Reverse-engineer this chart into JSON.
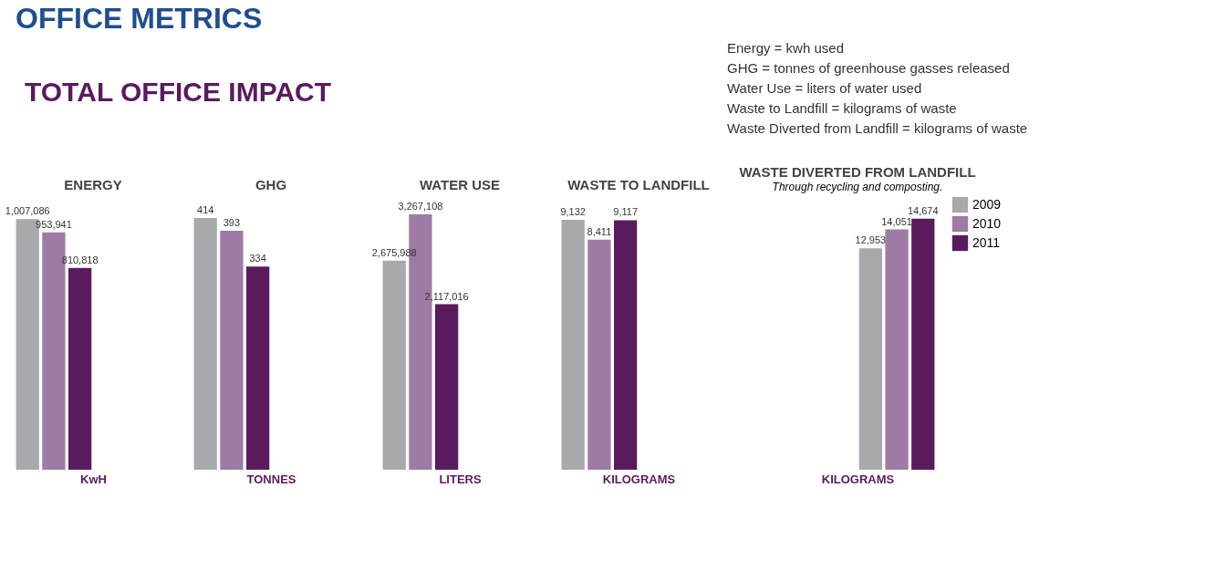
{
  "chart_data": [
    {
      "type": "other",
      "title": "OFFICE METRICS",
      "annotations": [
        "TOTAL OFFICE IMPACT",
        "Energy = kwh used",
        "GHG = tonnes of greenhouse gasses released",
        "Water Use = liters of water used",
        "Waste to Landfill = kilograms of waste",
        "Waste Diverted from Landfill = kilograms of waste"
      ]
    },
    {
      "type": "bar",
      "title": "ENERGY",
      "xlabel": "KwH",
      "categories": [
        null
      ],
      "tick_labels": false,
      "legend": false,
      "series": [
        {
          "color": "#a7a9ac",
          "values": [
            1007086
          ],
          "value_labels": [
            "1,007,086"
          ]
        },
        {
          "color": "#9e7ba5",
          "values": [
            953941
          ],
          "value_labels": [
            "953,941"
          ]
        },
        {
          "color": "#5a1a5e",
          "values": [
            810818
          ],
          "value_labels": [
            "810,818"
          ]
        }
      ]
    },
    {
      "type": "bar",
      "title": "GHG",
      "xlabel": "TONNES",
      "categories": [
        null
      ],
      "tick_labels": false,
      "legend": false,
      "series": [
        {
          "color": "#a7a9ac",
          "values": [
            414
          ],
          "value_labels": [
            "414"
          ]
        },
        {
          "color": "#9e7ba5",
          "values": [
            393
          ],
          "value_labels": [
            "393"
          ]
        },
        {
          "color": "#5a1a5e",
          "values": [
            334
          ],
          "value_labels": [
            "334"
          ]
        }
      ]
    },
    {
      "type": "bar",
      "title": "WATER USE",
      "xlabel": "LITERS",
      "categories": [
        null
      ],
      "tick_labels": false,
      "legend": false,
      "series": [
        {
          "color": "#a7a9ac",
          "values": [
            2675988
          ],
          "value_labels": [
            "2,675,988"
          ]
        },
        {
          "color": "#9e7ba5",
          "values": [
            3267108
          ],
          "value_labels": [
            "3,267,108"
          ]
        },
        {
          "color": "#5a1a5e",
          "values": [
            2117016
          ],
          "value_labels": [
            "2,117,016"
          ]
        }
      ]
    },
    {
      "type": "bar",
      "title": "WASTE TO LANDFILL",
      "xlabel": "KILOGRAMS",
      "categories": [
        null
      ],
      "tick_labels": false,
      "legend": false,
      "series": [
        {
          "color": "#a7a9ac",
          "values": [
            9132
          ],
          "value_labels": [
            "9,132"
          ]
        },
        {
          "color": "#9e7ba5",
          "values": [
            8411
          ],
          "value_labels": [
            "8,411"
          ]
        },
        {
          "color": "#5a1a5e",
          "values": [
            9117
          ],
          "value_labels": [
            "9,117"
          ]
        }
      ]
    },
    {
      "type": "bar",
      "title": "WASTE DIVERTED FROM LANDFILL",
      "subtitle": "Through recycling and composting.",
      "xlabel": "KILOGRAMS",
      "categories": [
        null
      ],
      "tick_labels": false,
      "legend": "right",
      "series": [
        {
          "name": "2009",
          "color": "#a7a9ac",
          "values": [
            12953
          ],
          "value_labels": [
            "12,953"
          ]
        },
        {
          "name": "2010",
          "color": "#9e7ba5",
          "values": [
            14051
          ],
          "value_labels": [
            "14,051"
          ]
        },
        {
          "name": "2011",
          "color": "#5a1a5e",
          "values": [
            14674
          ],
          "value_labels": [
            "14,674"
          ]
        }
      ]
    }
  ]
}
